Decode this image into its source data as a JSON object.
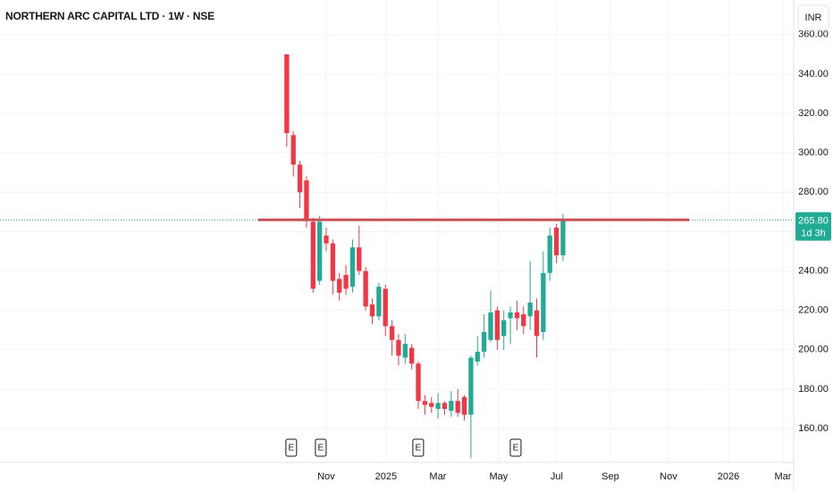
{
  "chart_data": {
    "type": "candlestick",
    "title": "NORTHERN ARC CAPITAL LTD · 1W · NSE",
    "currency": "INR",
    "categories": [
      null,
      null,
      null,
      null,
      null,
      null,
      null,
      null,
      null,
      null,
      null,
      null,
      null,
      null,
      null,
      null,
      null,
      null,
      null,
      null,
      null,
      null,
      null,
      null,
      null,
      null,
      null,
      null,
      null,
      null,
      null,
      null,
      null,
      null,
      null,
      null,
      null,
      null,
      null,
      null,
      null,
      null,
      null
    ],
    "open": [
      350,
      309,
      294,
      286,
      265,
      235,
      258,
      254,
      236,
      238,
      232,
      252,
      240,
      223,
      217,
      231,
      212,
      205,
      196,
      201,
      193,
      174,
      173,
      170,
      173,
      169,
      174,
      176,
      167,
      194,
      199,
      205,
      220,
      207,
      216,
      219,
      218,
      217,
      220,
      209,
      239,
      262,
      248
    ],
    "high": [
      350,
      311,
      296,
      288,
      267,
      268,
      262,
      256,
      239,
      243,
      256,
      263,
      242,
      226,
      234,
      233,
      215,
      208,
      208,
      203,
      194,
      177,
      176,
      178,
      174,
      179,
      180,
      177,
      197,
      207,
      218,
      230,
      222,
      220,
      222,
      225,
      222,
      245,
      226,
      250,
      262,
      264,
      269
    ],
    "low": [
      303,
      288,
      272,
      262,
      229,
      233,
      250,
      228,
      225,
      228,
      229,
      238,
      220,
      213,
      215,
      207,
      197,
      192,
      193,
      190,
      170,
      167,
      168,
      165,
      167,
      166,
      166,
      164,
      145,
      192,
      196,
      204,
      200,
      200,
      203,
      210,
      208,
      210,
      196,
      205,
      235,
      244,
      245
    ],
    "close": [
      310,
      294,
      280,
      266,
      231,
      265,
      254,
      235,
      229,
      231,
      252,
      240,
      222,
      217,
      232,
      212,
      205,
      197,
      203,
      193,
      174,
      172,
      171,
      173,
      170,
      174,
      168,
      167,
      196,
      199,
      209,
      219,
      205,
      215,
      219,
      216,
      212,
      224,
      207,
      239,
      258,
      248,
      266
    ],
    "up_color": "#22ab94",
    "down_color": "#f23645",
    "xlim": [
      -43.6,
      77.07
    ],
    "xticks": [
      {
        "value": 5.98,
        "label": "Nov"
      },
      {
        "value": 15.09,
        "label": "2025"
      },
      {
        "value": 22.97,
        "label": "Mar"
      },
      {
        "value": 32.21,
        "label": "May"
      },
      {
        "value": 41.05,
        "label": "Jul"
      },
      {
        "value": 49.2,
        "label": "Sep"
      },
      {
        "value": 58.04,
        "label": "Nov"
      },
      {
        "value": 67.15,
        "label": "2026"
      },
      {
        "value": 75.44,
        "label": "Mar"
      }
    ],
    "ylim": [
      142.8,
      377.6
    ],
    "yticks": [
      {
        "value": 160,
        "label": "160.00"
      },
      {
        "value": 180,
        "label": "180.00"
      },
      {
        "value": 200,
        "label": "200.00"
      },
      {
        "value": 220,
        "label": "220.00"
      },
      {
        "value": 240,
        "label": "240.00"
      },
      {
        "value": 260,
        "label": "260.00"
      },
      {
        "value": 280,
        "label": "280.00"
      },
      {
        "value": 300,
        "label": "300.00"
      },
      {
        "value": 320,
        "label": "320.00"
      },
      {
        "value": 340,
        "label": "340.00"
      },
      {
        "value": 360,
        "label": "360.00"
      }
    ],
    "grid": true,
    "earnings": [
      {
        "x": 0.68,
        "label": "E"
      },
      {
        "x": 5.17,
        "label": "E"
      },
      {
        "x": 19.98,
        "label": "E"
      },
      {
        "x": 34.8,
        "label": "E"
      }
    ],
    "level_line": {
      "value": 266,
      "x": [
        -4.35,
        61.17
      ],
      "color": "#e0444f"
    },
    "last_price": {
      "value": 265.8,
      "label": "265.80",
      "countdown": "1d 3h",
      "color": "#22ab94"
    }
  }
}
